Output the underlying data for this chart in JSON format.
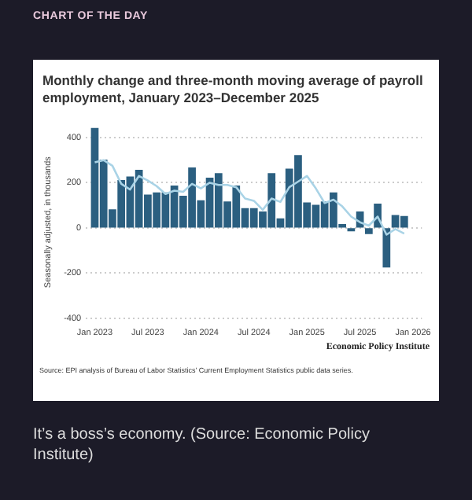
{
  "chart_data": {
    "type": "bar",
    "title": "Monthly change and three-month moving average of payroll employment, January 2023–December 2025",
    "ylabel": "Seasonally adjusted, in thousands",
    "annotations": [
      "CHART OF THE DAY",
      "Economic Policy Institute",
      "Source: EPI analysis of Bureau of Labor Statistics’ Current Employment Statistics public data series.",
      "It’s a boss’s economy. (Source: Economic Policy Institute)"
    ],
    "x": [
      "2023-01",
      "2023-02",
      "2023-03",
      "2023-04",
      "2023-05",
      "2023-06",
      "2023-07",
      "2023-08",
      "2023-09",
      "2023-10",
      "2023-11",
      "2023-12",
      "2024-01",
      "2024-02",
      "2024-03",
      "2024-04",
      "2024-05",
      "2024-06",
      "2024-07",
      "2024-08",
      "2024-09",
      "2024-10",
      "2024-11",
      "2024-12",
      "2025-01",
      "2025-02",
      "2025-03",
      "2025-04",
      "2025-05",
      "2025-06",
      "2025-07",
      "2025-08",
      "2025-09",
      "2025-10",
      "2025-11",
      "2025-12"
    ],
    "series": [
      {
        "color": "#2b5f80",
        "values": [
          440,
          300,
          80,
          210,
          225,
          255,
          145,
          155,
          155,
          185,
          140,
          265,
          120,
          220,
          240,
          115,
          185,
          85,
          85,
          70,
          240,
          40,
          260,
          320,
          110,
          100,
          115,
          155,
          15,
          -13,
          70,
          -25,
          105,
          -173,
          55,
          50
        ]
      },
      {
        "type": "line",
        "color": "#a9d3e6",
        "values": [
          290,
          300,
          275,
          195,
          170,
          230,
          210,
          185,
          150,
          165,
          160,
          195,
          175,
          200,
          190,
          190,
          180,
          130,
          120,
          80,
          130,
          115,
          180,
          205,
          230,
          175,
          110,
          125,
          95,
          50,
          25,
          10,
          50,
          -30,
          -5,
          -25
        ]
      }
    ],
    "xlim": [
      "2022-12",
      "2026-02"
    ],
    "xticks": [
      {
        "value": "2023-01",
        "label": "Jan 2023"
      },
      {
        "value": "2023-07",
        "label": "Jul 2023"
      },
      {
        "value": "2024-01",
        "label": "Jan 2024"
      },
      {
        "value": "2024-07",
        "label": "Jul 2024"
      },
      {
        "value": "2025-01",
        "label": "Jan 2025"
      },
      {
        "value": "2025-07",
        "label": "Jul 2025"
      },
      {
        "value": "2026-01",
        "label": "Jan 2026"
      }
    ],
    "ylim": [
      -400,
      450
    ],
    "yticks": [
      -400,
      -200,
      0,
      200,
      400
    ],
    "grid": "y",
    "marker": "none"
  }
}
